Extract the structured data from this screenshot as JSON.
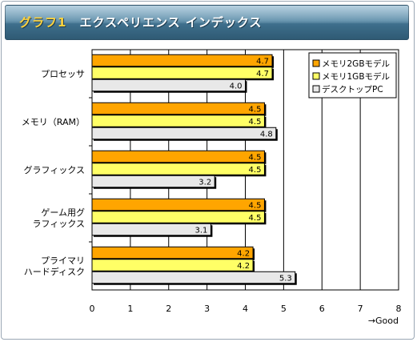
{
  "header": {
    "figure_label": "グラフ1",
    "title": "エクスペリエンス インデックス"
  },
  "chart_data": {
    "type": "bar",
    "orientation": "horizontal",
    "categories": [
      "プロセッサ",
      "メモリ（RAM）",
      "グラフィックス",
      "ゲーム用グラフィックス",
      "プライマリハードディスク"
    ],
    "category_label_lines": [
      [
        "プロセッサ"
      ],
      [
        "メモリ（RAM）"
      ],
      [
        "グラフィックス"
      ],
      [
        "ゲーム用グ",
        "ラフィックス"
      ],
      [
        "プライマリ",
        "ハードディスク"
      ]
    ],
    "series": [
      {
        "name": "メモリ2GBモデル",
        "values": [
          4.7,
          4.5,
          4.5,
          4.5,
          4.2
        ],
        "color": "#ffa500"
      },
      {
        "name": "メモリ1GBモデル",
        "values": [
          4.7,
          4.5,
          4.5,
          4.5,
          4.2
        ],
        "color": "#ffff66"
      },
      {
        "name": "デスクトップPC",
        "values": [
          4.0,
          4.8,
          3.2,
          3.1,
          5.3
        ],
        "color": "#e8e8e8"
      }
    ],
    "xlim": [
      0,
      8
    ],
    "x_ticks": [
      0,
      1,
      2,
      3,
      4,
      5,
      6,
      7,
      8
    ],
    "xlabel": "→Good",
    "ylabel": "",
    "grid": true,
    "legend_position": "top-right",
    "data_labels": true
  }
}
